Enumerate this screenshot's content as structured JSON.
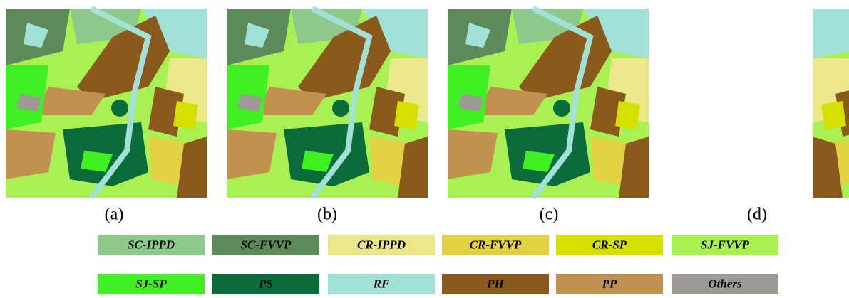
{
  "panels": [
    {
      "label": "(a)"
    },
    {
      "label": "(b)"
    },
    {
      "label": "(c)"
    },
    {
      "label": "(d)"
    }
  ],
  "legend": [
    {
      "name": "SC-IPPD",
      "color": "#8dc98b"
    },
    {
      "name": "SC-FVVP",
      "color": "#5c8a5a"
    },
    {
      "name": "CR-IPPD",
      "color": "#ebe88c"
    },
    {
      "name": "CR-FVVP",
      "color": "#e2d243"
    },
    {
      "name": "CR-SP",
      "color": "#d6e000"
    },
    {
      "name": "SJ-FVVP",
      "color": "#a9f153"
    },
    {
      "name": "SJ-SP",
      "color": "#3ff022"
    },
    {
      "name": "PS",
      "color": "#0b6b3b"
    },
    {
      "name": "RF",
      "color": "#a2e1d8"
    },
    {
      "name": "PH",
      "color": "#8a5a1c"
    },
    {
      "name": "PP",
      "color": "#c1924f"
    },
    {
      "name": "Others",
      "color": "#9b9b94"
    }
  ]
}
